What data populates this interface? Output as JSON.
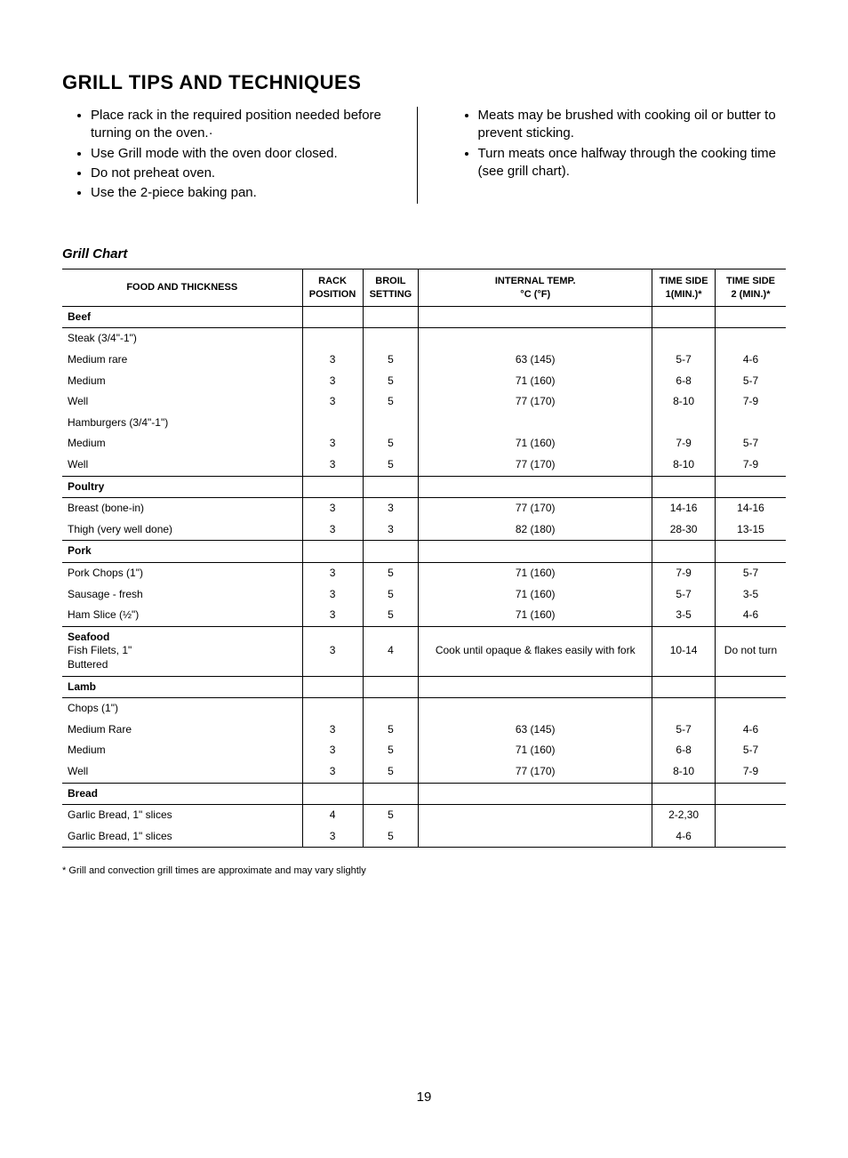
{
  "title": "GRILL TIPS AND TECHNIQUES",
  "tips_left": [
    "Place rack in the required position needed before turning on the oven.·",
    "Use Grill mode with the oven door closed.",
    "Do not preheat oven.",
    "Use the 2-piece baking pan."
  ],
  "tips_right": [
    "Meats may be brushed with cooking oil or butter to prevent sticking.",
    "Turn meats once halfway through the cooking time (see grill chart)."
  ],
  "chart_heading": "Grill Chart",
  "columns": [
    "FOOD AND THICKNESS",
    "RACK POSITION",
    "BROIL SETTING",
    "INTERNAL TEMP. °C (°F)",
    "TIME SIDE  1(MIN.)*",
    "TIME SIDE  2 (MIN.)*"
  ],
  "rows": [
    {
      "type": "section",
      "food": "Beef"
    },
    {
      "food": "Steak  (3/4\"-1\")"
    },
    {
      "food": "Medium rare",
      "rack": "3",
      "broil": "5",
      "temp": "63 (145)",
      "s1": "5-7",
      "s2": "4-6"
    },
    {
      "food": "Medium",
      "rack": "3",
      "broil": "5",
      "temp": "71 (160)",
      "s1": "6-8",
      "s2": "5-7"
    },
    {
      "food": "Well",
      "rack": "3",
      "broil": "5",
      "temp": "77 (170)",
      "s1": "8-10",
      "s2": "7-9"
    },
    {
      "food": "Hamburgers (3/4\"-1\")"
    },
    {
      "food": "Medium",
      "rack": "3",
      "broil": "5",
      "temp": "71 (160)",
      "s1": "7-9",
      "s2": "5-7"
    },
    {
      "food": "Well",
      "rack": "3",
      "broil": "5",
      "temp": "77 (170)",
      "s1": "8-10",
      "s2": "7-9"
    },
    {
      "type": "section",
      "top": true,
      "food": "Poultry"
    },
    {
      "food": "Breast (bone-in)",
      "rack": "3",
      "broil": "3",
      "temp": "77 (170)",
      "s1": "14-16",
      "s2": "14-16"
    },
    {
      "food": "Thigh (very well done)",
      "rack": "3",
      "broil": "3",
      "temp": "82 (180)",
      "s1": "28-30",
      "s2": "13-15"
    },
    {
      "type": "section",
      "top": true,
      "food": "Pork"
    },
    {
      "food": "Pork Chops (1\")",
      "rack": "3",
      "broil": "5",
      "temp": "71 (160)",
      "s1": "7-9",
      "s2": "5-7"
    },
    {
      "food": "Sausage - fresh",
      "rack": "3",
      "broil": "5",
      "temp": "71 (160)",
      "s1": "5-7",
      "s2": "3-5"
    },
    {
      "food": "Ham Slice (½\")",
      "rack": "3",
      "broil": "5",
      "temp": "71 (160)",
      "s1": "3-5",
      "s2": "4-6"
    },
    {
      "type": "seafood-block",
      "top": true,
      "lines": [
        "Seafood",
        "Fish Filets, 1\"",
        "Buttered"
      ],
      "rack": "3",
      "broil": "4",
      "temp": "Cook until opaque & flakes easily with fork",
      "s1": "10-14",
      "s2": "Do not turn"
    },
    {
      "type": "section",
      "top": true,
      "food": "Lamb"
    },
    {
      "food": "Chops (1\")"
    },
    {
      "food": "Medium Rare",
      "rack": "3",
      "broil": "5",
      "temp": "63 (145)",
      "s1": "5-7",
      "s2": "4-6"
    },
    {
      "food": "Medium",
      "rack": "3",
      "broil": "5",
      "temp": "71 (160)",
      "s1": "6-8",
      "s2": "5-7"
    },
    {
      "food": "Well",
      "rack": "3",
      "broil": "5",
      "temp": "77 (170)",
      "s1": "8-10",
      "s2": "7-9"
    },
    {
      "type": "section",
      "top": true,
      "food": "Bread"
    },
    {
      "food": "Garlic Bread, 1\" slices",
      "rack": "4",
      "broil": "5",
      "temp": "",
      "s1": "2-2,30",
      "s2": ""
    },
    {
      "food": "Garlic Bread, 1\" slices",
      "rack": "3",
      "broil": "5",
      "temp": "",
      "s1": "4-6",
      "s2": ""
    }
  ],
  "footnote": "* Grill and convection grill times are approximate and may vary slightly",
  "page_number": "19"
}
